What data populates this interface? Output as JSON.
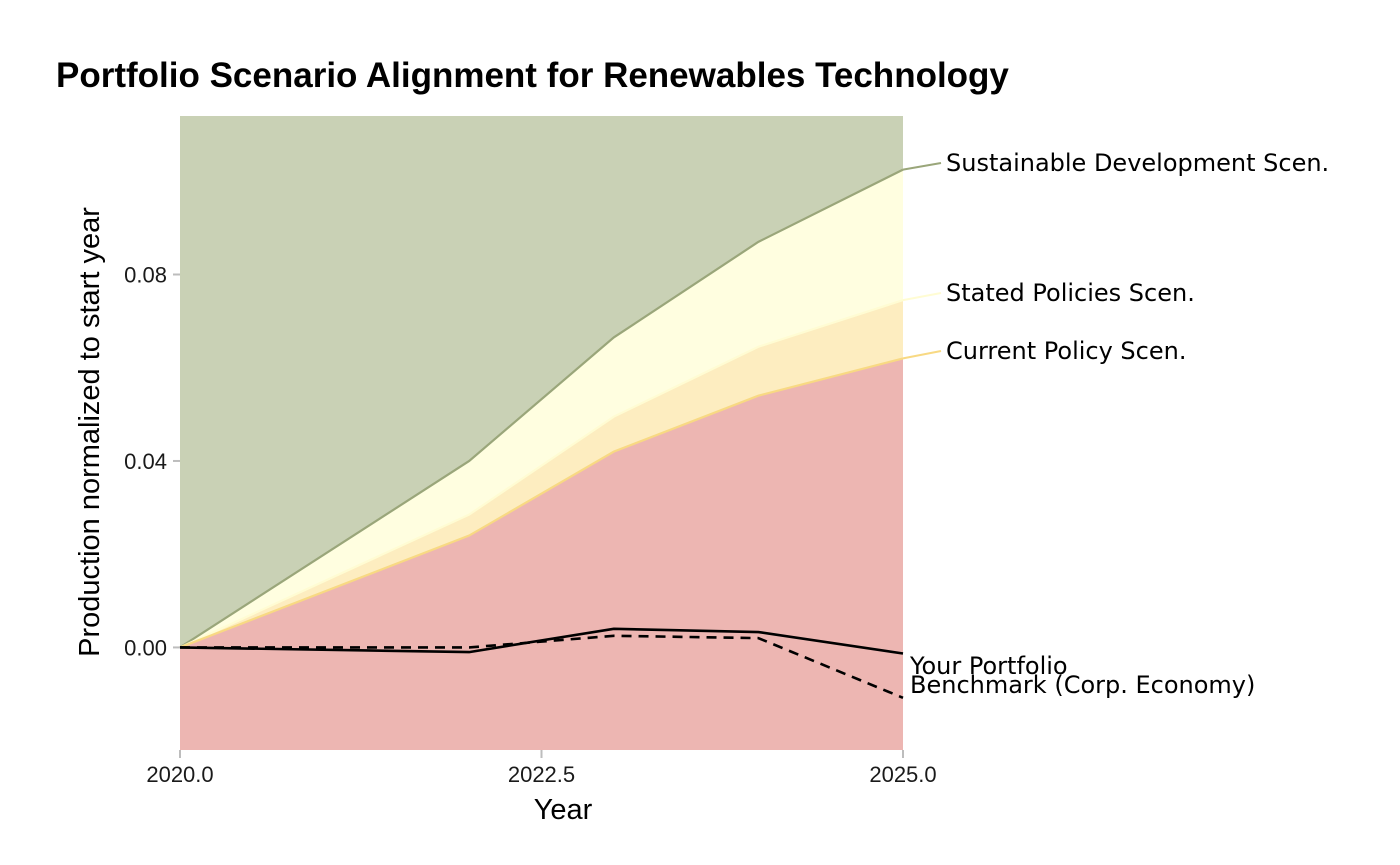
{
  "chart_data": {
    "type": "area",
    "title": "Portfolio Scenario Alignment for Renewables Technology",
    "xlabel": "Year",
    "ylabel": "Production normalized to start year",
    "xlim": [
      2020,
      2025
    ],
    "ylim": [
      -0.022,
      0.114
    ],
    "x_ticks": [
      "2020.0",
      "2022.5",
      "2025.0"
    ],
    "x_tick_values": [
      2020,
      2022.5,
      2025
    ],
    "y_ticks": [
      "0.00",
      "0.04",
      "0.08"
    ],
    "y_tick_values": [
      0.0,
      0.04,
      0.08
    ],
    "grid": false,
    "legend": "direct labels at right",
    "x": [
      2020,
      2022,
      2023,
      2024,
      2025
    ],
    "bands": [
      {
        "label": "",
        "fill": "#edb6b2",
        "lower": "bottom",
        "upper": [
          0.0,
          0.024,
          0.042,
          0.054,
          0.062
        ]
      },
      {
        "label": "",
        "fill": "#fdedc0",
        "lower": [
          0.0,
          0.024,
          0.042,
          0.054,
          0.062
        ],
        "upper": [
          0.0,
          0.0285,
          0.0495,
          0.0645,
          0.0745
        ]
      },
      {
        "label": "",
        "fill": "#fffee0",
        "lower": [
          0.0,
          0.0285,
          0.0495,
          0.0645,
          0.0745
        ],
        "upper": [
          0.0,
          0.04,
          0.0665,
          0.087,
          0.1025
        ]
      },
      {
        "label": "",
        "fill": "#c9d1b5",
        "lower": [
          0.0,
          0.04,
          0.0665,
          0.087,
          0.1025
        ],
        "upper": "top"
      }
    ],
    "scenarios": [
      {
        "name": "Sustainable Development Scen.",
        "color": "#9aa67a",
        "values": [
          0.0,
          0.04,
          0.0665,
          0.087,
          0.1025
        ]
      },
      {
        "name": "Stated Policies Scen.",
        "color": "#fffcd3",
        "values": [
          0.0,
          0.0285,
          0.0495,
          0.0645,
          0.0745
        ]
      },
      {
        "name": "Current Policy Scen.",
        "color": "#f8d983",
        "values": [
          0.0,
          0.024,
          0.042,
          0.054,
          0.062
        ]
      }
    ],
    "series": [
      {
        "name": "Your Portfolio",
        "style": "solid",
        "color": "#000000",
        "values": [
          0.0,
          -0.001,
          0.004,
          0.0033,
          -0.0013
        ]
      },
      {
        "name": "Benchmark (Corp. Economy)",
        "style": "dashed",
        "color": "#000000",
        "values": [
          0.0,
          0.0,
          0.0025,
          0.002,
          -0.0108
        ]
      }
    ]
  }
}
